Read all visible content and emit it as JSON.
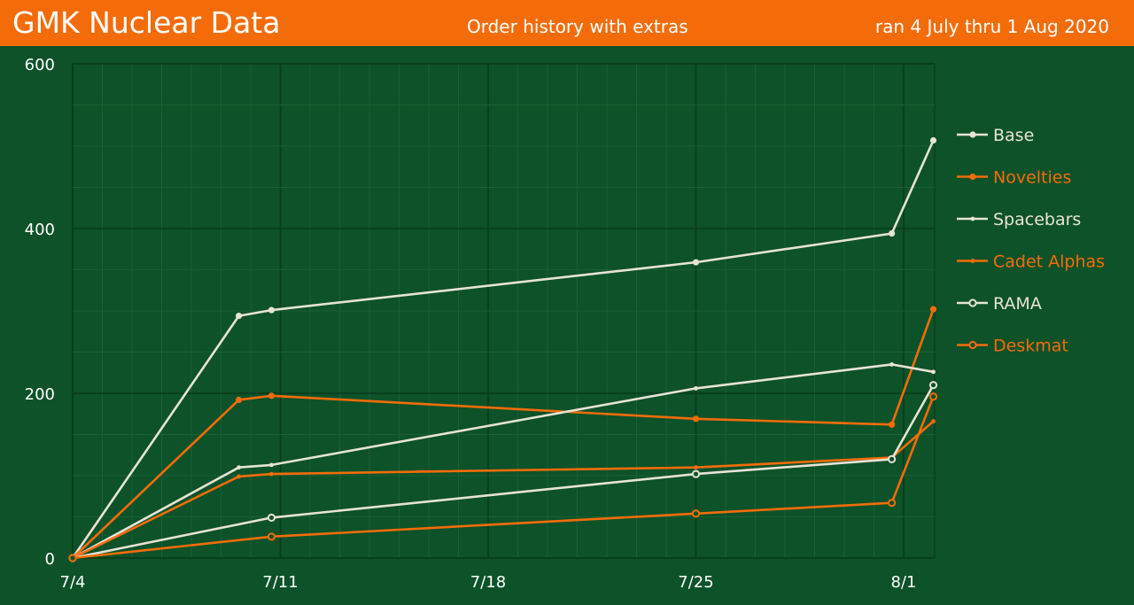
{
  "header": {
    "title": "GMK Nuclear Data",
    "subtitle": "Order history with extras",
    "date_range": "ran 4 July thru 1 Aug 2020"
  },
  "colors": {
    "header_bg": "#f46c0a",
    "plot_bg": "#0d5229",
    "white_series": "#e8e3d6",
    "orange_series": "#f46c0a"
  },
  "chart_data": {
    "type": "line",
    "x_unit": "days since 7/4",
    "xlim": [
      "2020-07-04",
      "2020-08-02"
    ],
    "ylim": [
      0,
      600
    ],
    "y_ticks": [
      0,
      200,
      400,
      600
    ],
    "x_ticks": [
      {
        "label": "7/4",
        "date": "2020-07-04"
      },
      {
        "label": "7/11",
        "date": "2020-07-11"
      },
      {
        "label": "7/18",
        "date": "2020-07-18"
      },
      {
        "label": "7/25",
        "date": "2020-07-25"
      },
      {
        "label": "8/1",
        "date": "2020-08-01"
      }
    ],
    "grid": true,
    "legend": "right",
    "series": [
      {
        "name": "Base",
        "color": "#e8e3d6",
        "marker": "filled",
        "points": [
          [
            "2020-07-04",
            0
          ],
          [
            "2020-07-09.6",
            294
          ],
          [
            "2020-07-10.7",
            301
          ],
          [
            "2020-07-25",
            359
          ],
          [
            "2020-07-31.6",
            394
          ],
          [
            "2020-08-02",
            507
          ]
        ]
      },
      {
        "name": "Novelties",
        "color": "#f46c0a",
        "marker": "filled",
        "points": [
          [
            "2020-07-04",
            0
          ],
          [
            "2020-07-09.6",
            192
          ],
          [
            "2020-07-10.7",
            197
          ],
          [
            "2020-07-25",
            169
          ],
          [
            "2020-07-31.6",
            162
          ],
          [
            "2020-08-02",
            302
          ]
        ]
      },
      {
        "name": "Spacebars",
        "color": "#e8e3d6",
        "marker": "small",
        "points": [
          [
            "2020-07-04",
            0
          ],
          [
            "2020-07-09.6",
            110
          ],
          [
            "2020-07-10.7",
            113
          ],
          [
            "2020-07-25",
            206
          ],
          [
            "2020-07-31.6",
            235
          ],
          [
            "2020-08-02",
            226
          ]
        ]
      },
      {
        "name": "Cadet Alphas",
        "color": "#f46c0a",
        "marker": "small",
        "points": [
          [
            "2020-07-04",
            0
          ],
          [
            "2020-07-09.6",
            99
          ],
          [
            "2020-07-10.7",
            102
          ],
          [
            "2020-07-25",
            110
          ],
          [
            "2020-07-31.6",
            122
          ],
          [
            "2020-08-02",
            166
          ]
        ]
      },
      {
        "name": "RAMA",
        "color": "#e8e3d6",
        "marker": "open",
        "points": [
          [
            "2020-07-04",
            0
          ],
          [
            "2020-07-10.7",
            49
          ],
          [
            "2020-07-25",
            102
          ],
          [
            "2020-07-31.6",
            120
          ],
          [
            "2020-08-02",
            210
          ]
        ]
      },
      {
        "name": "Deskmat",
        "color": "#f46c0a",
        "marker": "open",
        "points": [
          [
            "2020-07-04",
            0
          ],
          [
            "2020-07-10.7",
            26
          ],
          [
            "2020-07-25",
            54
          ],
          [
            "2020-07-31.6",
            67
          ],
          [
            "2020-08-02",
            196
          ]
        ]
      }
    ]
  }
}
